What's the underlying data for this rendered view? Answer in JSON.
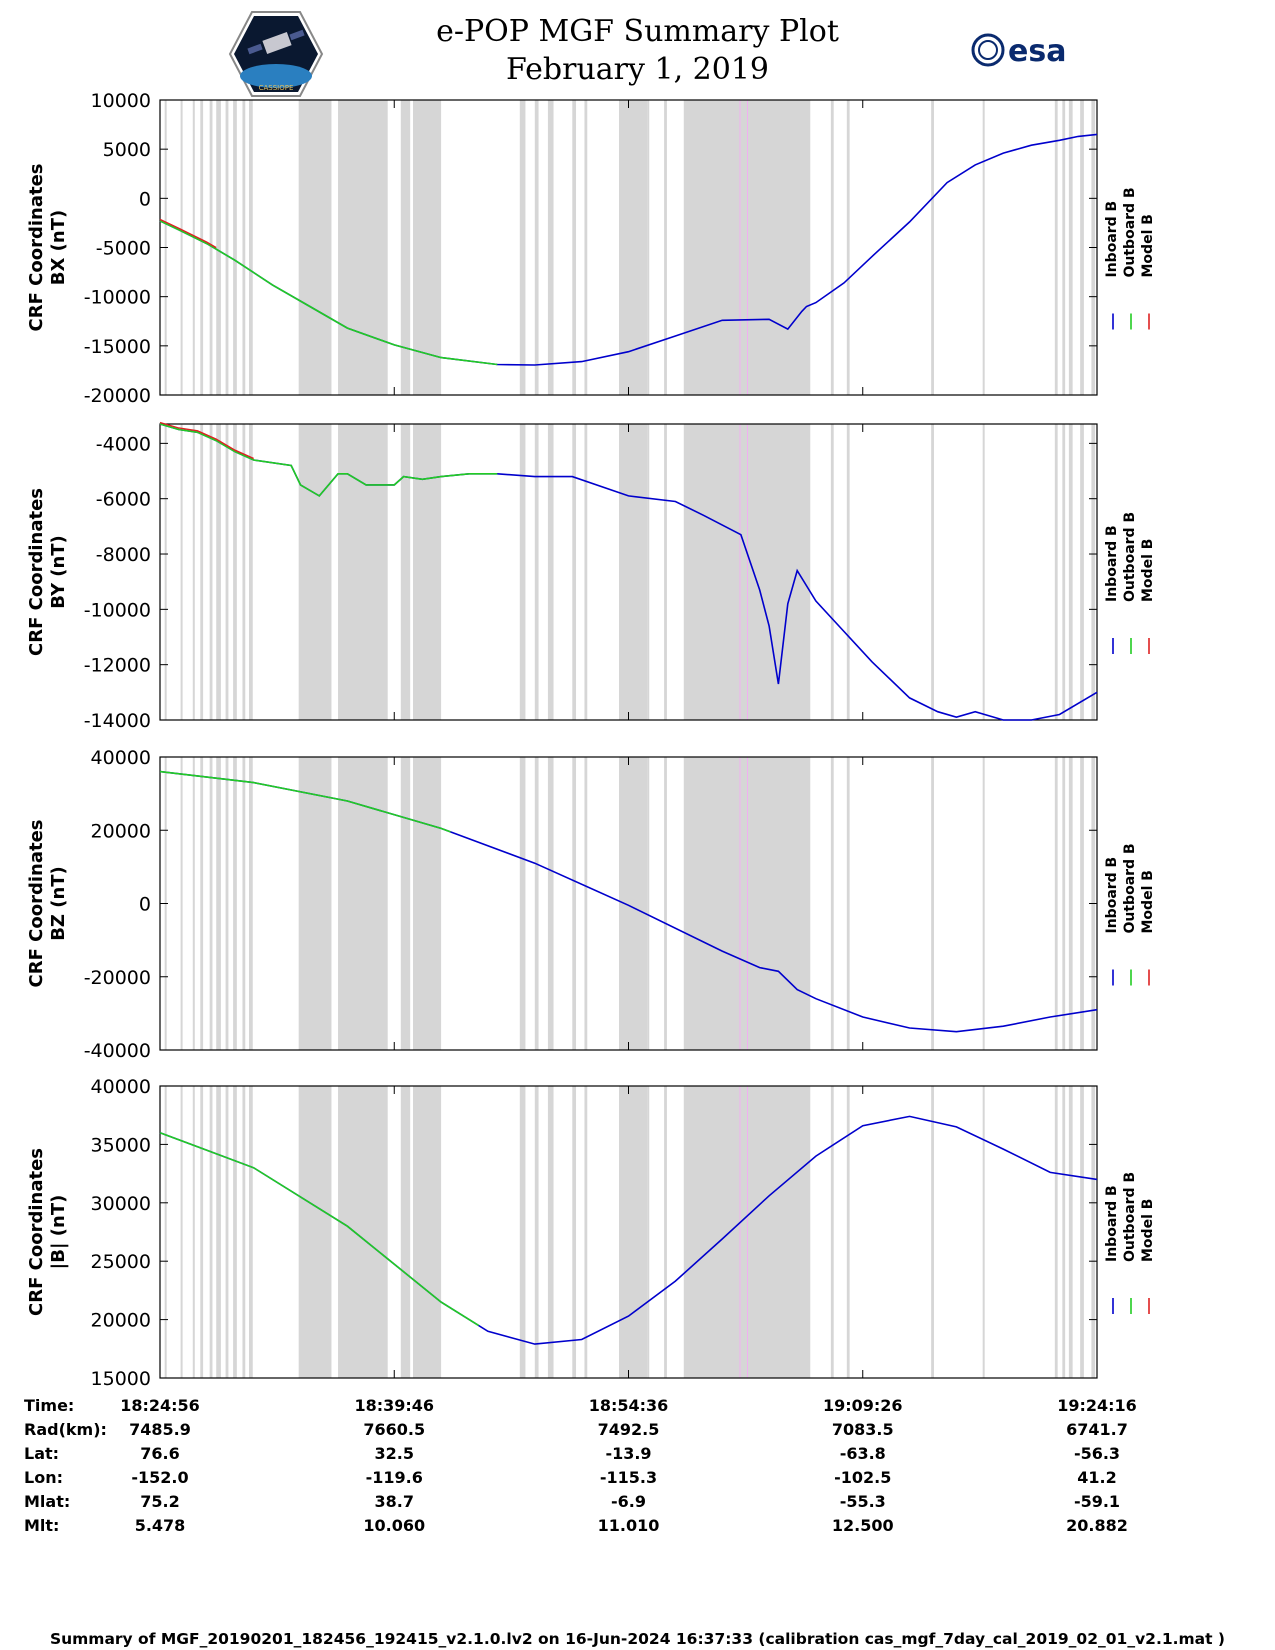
{
  "title": "e-POP MGF Summary Plot",
  "date": "February 1, 2019",
  "logo_left_text": "CASSIOPE",
  "logo_right_text": "esa",
  "colors": {
    "inboard": "#0000cc",
    "outboard": "#22cc22",
    "model": "#dd2222",
    "gap": "#d6d6d6",
    "pinkline": "#f0b0f0"
  },
  "legend": [
    "Inboard B",
    "Outboard B",
    "Model B"
  ],
  "chart_data": [
    {
      "type": "line",
      "ylabel_line1": "CRF Coordinates",
      "ylabel_line2": "BX (nT)",
      "ylim": [
        -20000,
        10000
      ],
      "yticks": [
        "10000",
        "5000",
        "0",
        "-5000",
        "-10000",
        "-15000",
        "-20000"
      ],
      "x": [
        0,
        0.02,
        0.05,
        0.08,
        0.12,
        0.16,
        0.2,
        0.25,
        0.3,
        0.36,
        0.4,
        0.45,
        0.5,
        0.55,
        0.6,
        0.65,
        0.67,
        0.685,
        0.69,
        0.7,
        0.73,
        0.76,
        0.8,
        0.84,
        0.87,
        0.9,
        0.93,
        0.96,
        0.98,
        1.0
      ],
      "values": [
        -2300,
        -3200,
        -4600,
        -6300,
        -8800,
        -11000,
        -13200,
        -14900,
        -16200,
        -16900,
        -16950,
        -16600,
        -15600,
        -14000,
        -12400,
        -12300,
        -13300,
        -11500,
        -11000,
        -10600,
        -8600,
        -5900,
        -2400,
        1600,
        3400,
        4600,
        5400,
        5900,
        6300,
        6500
      ],
      "outboard_until": 0.36,
      "model_until": 0.06
    },
    {
      "type": "line",
      "ylabel_line1": "CRF Coordinates",
      "ylabel_line2": "BY (nT)",
      "ylim": [
        -14000,
        -3300
      ],
      "yticks": [
        "-4000",
        "-6000",
        "-8000",
        "-10000",
        "-12000",
        "-14000"
      ],
      "x": [
        0,
        0.02,
        0.04,
        0.06,
        0.08,
        0.1,
        0.14,
        0.15,
        0.17,
        0.19,
        0.2,
        0.22,
        0.25,
        0.26,
        0.28,
        0.3,
        0.33,
        0.36,
        0.4,
        0.44,
        0.5,
        0.55,
        0.58,
        0.62,
        0.64,
        0.65,
        0.66,
        0.67,
        0.68,
        0.7,
        0.73,
        0.76,
        0.8,
        0.83,
        0.85,
        0.87,
        0.9,
        0.93,
        0.96,
        1.0
      ],
      "values": [
        -3300,
        -3500,
        -3600,
        -3900,
        -4300,
        -4600,
        -4800,
        -5500,
        -5900,
        -5100,
        -5100,
        -5500,
        -5500,
        -5200,
        -5300,
        -5200,
        -5100,
        -5100,
        -5200,
        -5200,
        -5900,
        -6100,
        -6600,
        -7300,
        -9300,
        -10600,
        -12700,
        -9800,
        -8600,
        -9700,
        -10800,
        -11900,
        -13200,
        -13700,
        -13900,
        -13700,
        -14000,
        -14000,
        -13800,
        -13000
      ],
      "outboard_until": 0.36,
      "model_until": 0.1
    },
    {
      "type": "line",
      "ylabel_line1": "CRF Coordinates",
      "ylabel_line2": "BZ (nT)",
      "ylim": [
        -40000,
        40000
      ],
      "yticks": [
        "40000",
        "20000",
        "0",
        "-20000",
        "-40000"
      ],
      "x": [
        0,
        0.1,
        0.2,
        0.3,
        0.4,
        0.5,
        0.6,
        0.64,
        0.66,
        0.68,
        0.7,
        0.75,
        0.8,
        0.85,
        0.9,
        0.95,
        1.0
      ],
      "values": [
        36000,
        33000,
        28000,
        20500,
        11000,
        -500,
        -13000,
        -17500,
        -18500,
        -23500,
        -26000,
        -31000,
        -34000,
        -35000,
        -33500,
        -31000,
        -29000
      ],
      "outboard_until": 0.31,
      "model_until": 0
    },
    {
      "type": "line",
      "ylabel_line1": "CRF Coordinates",
      "ylabel_line2": "|B| (nT)",
      "ylim": [
        15000,
        40000
      ],
      "yticks": [
        "40000",
        "35000",
        "30000",
        "25000",
        "20000",
        "15000"
      ],
      "x": [
        0,
        0.1,
        0.2,
        0.3,
        0.35,
        0.4,
        0.45,
        0.5,
        0.55,
        0.6,
        0.65,
        0.7,
        0.75,
        0.8,
        0.85,
        0.9,
        0.95,
        1.0
      ],
      "values": [
        36000,
        33000,
        28000,
        21500,
        19000,
        17900,
        18300,
        20300,
        23300,
        26900,
        30600,
        34000,
        36600,
        37400,
        36500,
        34600,
        32600,
        32000
      ],
      "outboard_until": 0.34,
      "model_until": 0
    }
  ],
  "gaps": [
    [
      0.005,
      0.007
    ],
    [
      0.022,
      0.024
    ],
    [
      0.035,
      0.037
    ],
    [
      0.043,
      0.046
    ],
    [
      0.053,
      0.056
    ],
    [
      0.06,
      0.065
    ],
    [
      0.07,
      0.073
    ],
    [
      0.078,
      0.082
    ],
    [
      0.088,
      0.091
    ],
    [
      0.095,
      0.099
    ],
    [
      0.148,
      0.183
    ],
    [
      0.19,
      0.243
    ],
    [
      0.257,
      0.267
    ],
    [
      0.27,
      0.3
    ],
    [
      0.384,
      0.39
    ],
    [
      0.4,
      0.404
    ],
    [
      0.414,
      0.42
    ],
    [
      0.44,
      0.444
    ],
    [
      0.453,
      0.456
    ],
    [
      0.49,
      0.493
    ],
    [
      0.5,
      0.506
    ],
    [
      0.513,
      0.517
    ],
    [
      0.52,
      0.52
    ],
    [
      0.493,
      0.496
    ],
    [
      0.49,
      0.49
    ],
    [
      0.49,
      0.5
    ],
    [
      0.505,
      0.52
    ],
    [
      0.538,
      0.541
    ],
    [
      0.559,
      0.62
    ],
    [
      0.62,
      0.694
    ],
    [
      0.716,
      0.719
    ],
    [
      0.733,
      0.736
    ],
    [
      0.823,
      0.826
    ],
    [
      0.878,
      0.88
    ],
    [
      0.955,
      0.958
    ],
    [
      0.963,
      0.966
    ],
    [
      0.97,
      0.974
    ],
    [
      0.982,
      0.986
    ],
    [
      0.994,
      0.998
    ]
  ],
  "xtick_fracs": [
    0,
    0.25,
    0.5,
    0.75,
    1.0
  ],
  "info_labels": [
    "Time:",
    "Rad(km):",
    "Lat:",
    "Lon:",
    "Mlat:",
    "Mlt:"
  ],
  "info_cols": [
    [
      "18:24:56",
      "7485.9",
      "76.6",
      "-152.0",
      "75.2",
      "5.478"
    ],
    [
      "18:39:46",
      "7660.5",
      "32.5",
      "-119.6",
      "38.7",
      "10.060"
    ],
    [
      "18:54:36",
      "7492.5",
      "-13.9",
      "-115.3",
      "-6.9",
      "11.010"
    ],
    [
      "19:09:26",
      "7083.5",
      "-63.8",
      "-102.5",
      "-55.3",
      "12.500"
    ],
    [
      "19:24:16",
      "6741.7",
      "-56.3",
      "41.2",
      "-59.1",
      "20.882"
    ]
  ],
  "footer": "Summary of MGF_20190201_182456_192415_v2.1.0.lv2 on 16-Jun-2024 16:37:33 (calibration cas_mgf_7day_cal_2019_02_01_v2.1.mat )"
}
